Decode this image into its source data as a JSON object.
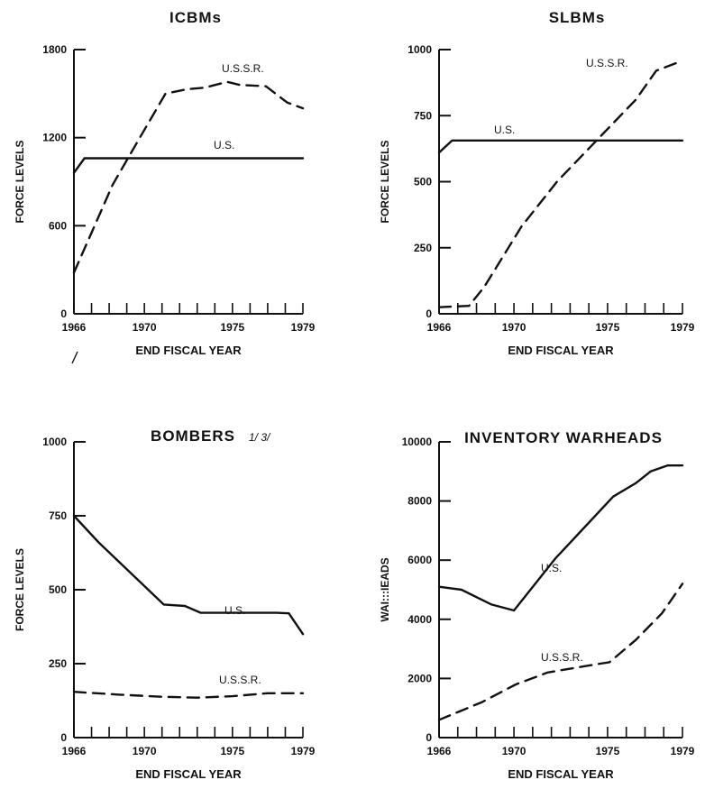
{
  "panels": [
    {
      "type": "line",
      "title": "ICBMs",
      "title_suffix": "",
      "xlabel": "END FISCAL YEAR",
      "ylabel": "FORCE LEVELS",
      "xlim": [
        1966,
        1979
      ],
      "ylim": [
        0,
        1800
      ],
      "x_ticks": [
        1966,
        1970,
        1975,
        1979
      ],
      "y_ticks": [
        0,
        600,
        1200,
        1800
      ],
      "series": [
        {
          "name": "U.S.",
          "style": "solid",
          "x": [
            1966,
            1966.6,
            1970,
            1975,
            1979
          ],
          "y": [
            960,
            1060,
            1060,
            1060,
            1060
          ]
        },
        {
          "name": "U.S.S.R.",
          "style": "dashed",
          "x": [
            1966,
            1968.2,
            1969.5,
            1971.2,
            1972.4,
            1973.4,
            1974.7,
            1975.4,
            1976.9,
            1978.1,
            1979
          ],
          "y": [
            280,
            880,
            1150,
            1500,
            1530,
            1540,
            1580,
            1560,
            1550,
            1440,
            1400
          ]
        }
      ]
    },
    {
      "type": "line",
      "title": "SLBMs",
      "title_suffix": "",
      "xlabel": "END FISCAL YEAR",
      "ylabel": "FORCE LEVELS",
      "xlim": [
        1966,
        1979
      ],
      "ylim": [
        0,
        1000
      ],
      "x_ticks": [
        1966,
        1970,
        1975,
        1979
      ],
      "y_ticks": [
        0,
        250,
        500,
        750,
        1000
      ],
      "series": [
        {
          "name": "U.S.",
          "style": "solid",
          "x": [
            1966,
            1966.7,
            1970,
            1975,
            1979
          ],
          "y": [
            610,
            656,
            656,
            656,
            656
          ]
        },
        {
          "name": "U.S.S.R.",
          "style": "dashed",
          "x": [
            1966,
            1967.6,
            1968.4,
            1970.4,
            1972.3,
            1974.6,
            1976.5,
            1977.6,
            1978.7,
            1979
          ],
          "y": [
            25,
            30,
            100,
            330,
            500,
            670,
            810,
            920,
            950,
            950
          ]
        }
      ]
    },
    {
      "type": "line",
      "title": "BOMBERS",
      "title_suffix": "1/ 3/",
      "xlabel": "END FISCAL YEAR",
      "ylabel": "FORCE LEVELS",
      "xlim": [
        1966,
        1979
      ],
      "ylim": [
        0,
        1000
      ],
      "x_ticks": [
        1966,
        1970,
        1975,
        1979
      ],
      "y_ticks": [
        0,
        250,
        500,
        750,
        1000
      ],
      "series": [
        {
          "name": "U.S.",
          "style": "solid",
          "x": [
            1966,
            1967.4,
            1971.1,
            1972.3,
            1973.2,
            1977.5,
            1978.2,
            1979
          ],
          "y": [
            750,
            660,
            450,
            445,
            422,
            422,
            420,
            350
          ]
        },
        {
          "name": "U.S.S.R.",
          "style": "dashed",
          "x": [
            1966,
            1968.6,
            1971,
            1973,
            1975,
            1977,
            1979
          ],
          "y": [
            155,
            145,
            138,
            135,
            140,
            150,
            150
          ]
        }
      ]
    },
    {
      "type": "line",
      "title": "INVENTORY WARHEADS",
      "title_suffix": "",
      "xlabel": "END FISCAL YEAR",
      "ylabel": "WAI:::IEADS",
      "xlim": [
        1966,
        1979
      ],
      "ylim": [
        0,
        10000
      ],
      "x_ticks": [
        1966,
        1970,
        1975,
        1979
      ],
      "y_ticks": [
        0,
        2000,
        4000,
        6000,
        8000,
        10000
      ],
      "series": [
        {
          "name": "U.S.",
          "style": "solid",
          "x": [
            1966,
            1967.2,
            1968.8,
            1970,
            1972.2,
            1975.3,
            1976.5,
            1977.3,
            1978.2,
            1979
          ],
          "y": [
            5100,
            5000,
            4500,
            4300,
            6050,
            8150,
            8600,
            9000,
            9200,
            9200
          ]
        },
        {
          "name": "U.S.S.R.",
          "style": "dashed",
          "x": [
            1966,
            1968.3,
            1970.1,
            1971.8,
            1973.2,
            1974.6,
            1975.1,
            1976.5,
            1977.9,
            1979
          ],
          "y": [
            600,
            1200,
            1800,
            2200,
            2350,
            2500,
            2550,
            3300,
            4200,
            5200
          ]
        }
      ]
    }
  ],
  "chart_data": [
    {
      "type": "line",
      "title": "ICBMs",
      "xlabel": "END FISCAL YEAR",
      "ylabel": "FORCE LEVELS",
      "xlim": [
        1966,
        1979
      ],
      "ylim": [
        0,
        1800
      ],
      "series": [
        {
          "name": "U.S.",
          "x": [
            1966,
            1966.6,
            1970,
            1975,
            1979
          ],
          "values": [
            960,
            1060,
            1060,
            1060,
            1060
          ]
        },
        {
          "name": "U.S.S.R.",
          "x": [
            1966,
            1968.2,
            1969.5,
            1971.2,
            1972.4,
            1973.4,
            1974.7,
            1975.4,
            1976.9,
            1978.1,
            1979
          ],
          "values": [
            280,
            880,
            1150,
            1500,
            1530,
            1540,
            1580,
            1560,
            1550,
            1440,
            1400
          ]
        }
      ]
    },
    {
      "type": "line",
      "title": "SLBMs",
      "xlabel": "END FISCAL YEAR",
      "ylabel": "FORCE LEVELS",
      "xlim": [
        1966,
        1979
      ],
      "ylim": [
        0,
        1000
      ],
      "series": [
        {
          "name": "U.S.",
          "x": [
            1966,
            1966.7,
            1970,
            1975,
            1979
          ],
          "values": [
            610,
            656,
            656,
            656,
            656
          ]
        },
        {
          "name": "U.S.S.R.",
          "x": [
            1966,
            1967.6,
            1968.4,
            1970.4,
            1972.3,
            1974.6,
            1976.5,
            1977.6,
            1978.7,
            1979
          ],
          "values": [
            25,
            30,
            100,
            330,
            500,
            670,
            810,
            920,
            950,
            950
          ]
        }
      ]
    },
    {
      "type": "line",
      "title": "BOMBERS",
      "xlabel": "END FISCAL YEAR",
      "ylabel": "FORCE LEVELS",
      "xlim": [
        1966,
        1979
      ],
      "ylim": [
        0,
        1000
      ],
      "series": [
        {
          "name": "U.S.",
          "x": [
            1966,
            1967.4,
            1971.1,
            1972.3,
            1973.2,
            1977.5,
            1978.2,
            1979
          ],
          "values": [
            750,
            660,
            450,
            445,
            422,
            422,
            420,
            350
          ]
        },
        {
          "name": "U.S.S.R.",
          "x": [
            1966,
            1968.6,
            1971,
            1973,
            1975,
            1977,
            1979
          ],
          "values": [
            155,
            145,
            138,
            135,
            140,
            150,
            150
          ]
        }
      ]
    },
    {
      "type": "line",
      "title": "INVENTORY WARHEADS",
      "xlabel": "END FISCAL YEAR",
      "ylabel": "WAI:::IEADS",
      "xlim": [
        1966,
        1979
      ],
      "ylim": [
        0,
        10000
      ],
      "series": [
        {
          "name": "U.S.",
          "x": [
            1966,
            1967.2,
            1968.8,
            1970,
            1972.2,
            1975.3,
            1976.5,
            1977.3,
            1978.2,
            1979
          ],
          "values": [
            5100,
            5000,
            4500,
            4300,
            6050,
            8150,
            8600,
            9000,
            9200,
            9200
          ]
        },
        {
          "name": "U.S.S.R.",
          "x": [
            1966,
            1968.3,
            1970.1,
            1971.8,
            1973.2,
            1974.6,
            1975.1,
            1976.5,
            1977.9,
            1979
          ],
          "values": [
            600,
            1200,
            1800,
            2200,
            2350,
            2500,
            2550,
            3300,
            4200,
            5200
          ]
        }
      ]
    }
  ]
}
